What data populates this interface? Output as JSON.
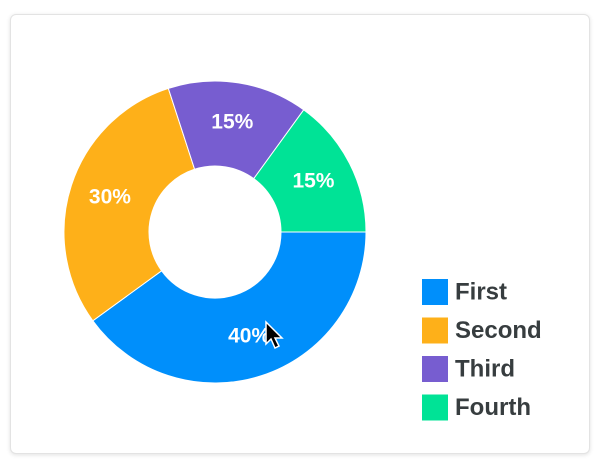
{
  "chart_data": {
    "type": "donut",
    "categories": [
      "First",
      "Second",
      "Third",
      "Fourth"
    ],
    "values": [
      40,
      30,
      15,
      15
    ],
    "value_labels": [
      "40%",
      "30%",
      "15%",
      "15%"
    ],
    "colors": [
      "#008ffb",
      "#feb019",
      "#775dd0",
      "#00e396"
    ],
    "legend": "bottom-right"
  }
}
